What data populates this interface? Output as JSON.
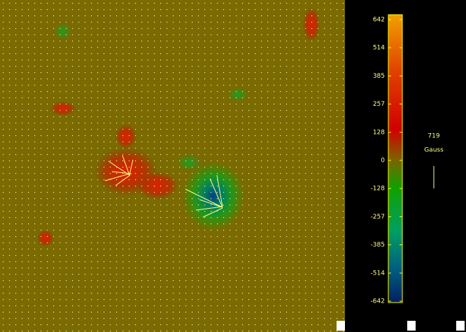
{
  "chart_data": {
    "type": "heatmap",
    "colorbar": {
      "lim": [
        -642,
        642
      ],
      "ticks": [
        642,
        514,
        385,
        257,
        128,
        0,
        -128,
        -257,
        -385,
        -514,
        -642
      ]
    },
    "vector_scale": {
      "value": 719,
      "unit": "Gauss"
    }
  }
}
